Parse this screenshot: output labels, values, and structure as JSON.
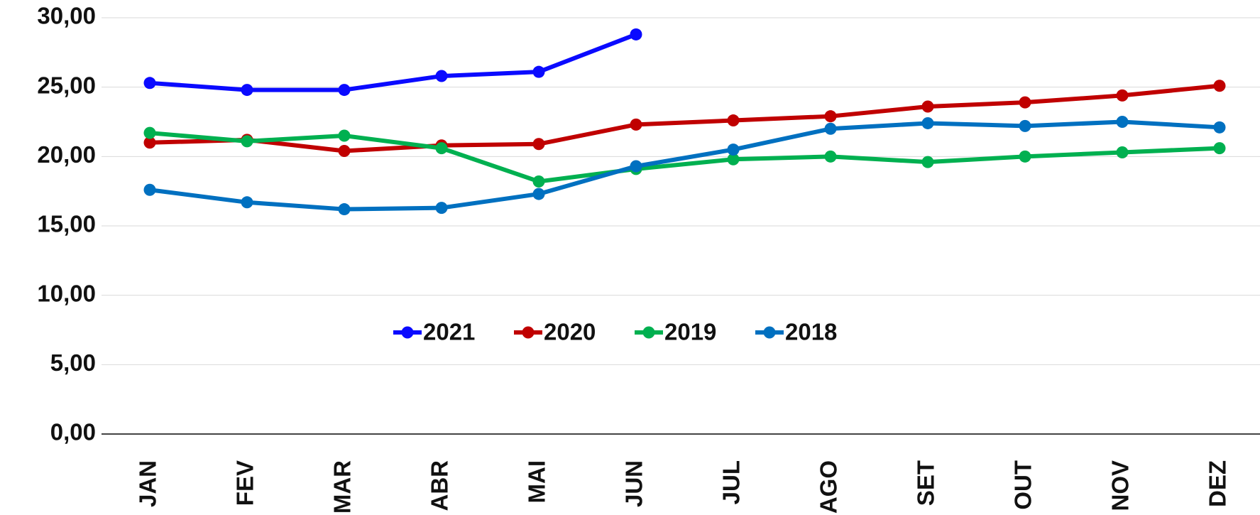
{
  "chart_data": {
    "type": "line",
    "categories": [
      "JAN",
      "FEV",
      "MAR",
      "ABR",
      "MAI",
      "JUN",
      "JUL",
      "AGO",
      "SET",
      "OUT",
      "NOV",
      "DEZ"
    ],
    "series": [
      {
        "name": "2021",
        "color": "#0a0aff",
        "values": [
          25.3,
          24.8,
          24.8,
          25.8,
          26.1,
          28.8,
          null,
          null,
          null,
          null,
          null,
          null
        ]
      },
      {
        "name": "2020",
        "color": "#c00000",
        "values": [
          21.0,
          21.2,
          20.4,
          20.8,
          20.9,
          22.3,
          22.6,
          22.9,
          23.6,
          23.9,
          24.4,
          25.1
        ]
      },
      {
        "name": "2019",
        "color": "#00b050",
        "values": [
          21.7,
          21.1,
          21.5,
          20.6,
          18.2,
          19.1,
          19.8,
          20.0,
          19.6,
          20.0,
          20.3,
          20.6
        ]
      },
      {
        "name": "2018",
        "color": "#0070c0",
        "values": [
          17.6,
          16.7,
          16.2,
          16.3,
          17.3,
          19.3,
          20.5,
          22.0,
          22.4,
          22.2,
          22.5,
          22.1
        ]
      }
    ],
    "ylim": [
      0,
      30
    ],
    "yticks": [
      {
        "value": 0,
        "label": "0,00"
      },
      {
        "value": 5,
        "label": "5,00"
      },
      {
        "value": 10,
        "label": "10,00"
      },
      {
        "value": 15,
        "label": "15,00"
      },
      {
        "value": 20,
        "label": "20,00"
      },
      {
        "value": 25,
        "label": "25,00"
      },
      {
        "value": 30,
        "label": "30,00"
      }
    ],
    "grid": true,
    "legend": "center"
  }
}
